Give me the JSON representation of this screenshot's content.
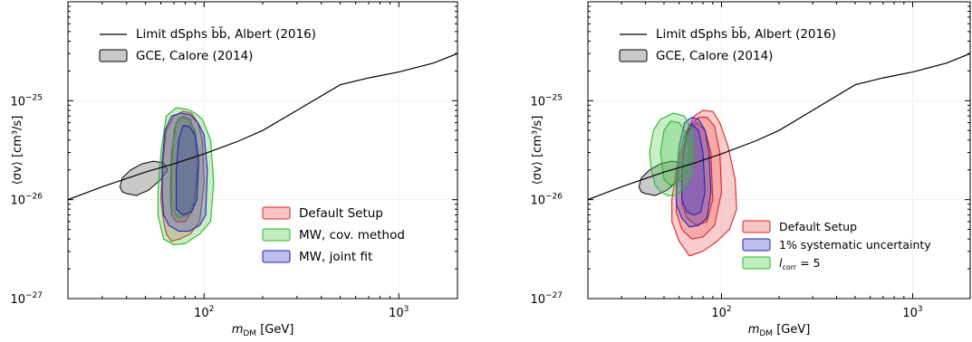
{
  "chart_data": [
    {
      "type": "area",
      "xscale": "log",
      "yscale": "log",
      "xlim": [
        20,
        2000
      ],
      "ylim": [
        1e-27,
        1e-24
      ],
      "xlabel_main": "m",
      "xlabel_sub": "DM",
      "xlabel_unit": " [GeV]",
      "ylabel": "⟨σv⟩ [cm³/s]",
      "x_ticks": [
        {
          "value": 100,
          "base": "10",
          "exp": "2"
        },
        {
          "value": 1000,
          "base": "10",
          "exp": "3"
        }
      ],
      "y_ticks": [
        {
          "value": 1e-27,
          "base": "10",
          "exp": "−27"
        },
        {
          "value": 1e-26,
          "base": "10",
          "exp": "−26"
        },
        {
          "value": 1e-25,
          "base": "10",
          "exp": "−25"
        }
      ],
      "grid": true,
      "legend_top": [
        {
          "label": "Limit dSphs b̄b̄, Albert (2016)",
          "style": "line",
          "color": "#000000"
        },
        {
          "label": "GCE, Calore (2014)",
          "style": "patch",
          "color": "#aaaaaa"
        }
      ],
      "legend_bottom": [
        {
          "label": "Default Setup",
          "color": "#dd2222"
        },
        {
          "label": "MW, cov. method",
          "color": "#22bb22"
        },
        {
          "label": "MW, joint fit",
          "color": "#2222bb"
        }
      ],
      "limit_curve": {
        "x": [
          20,
          30,
          50,
          70,
          100,
          150,
          200,
          300,
          500,
          700,
          1000,
          1500,
          2000
        ],
        "y": [
          1e-26,
          1.35e-26,
          1.9e-26,
          2.3e-26,
          2.9e-26,
          3.9e-26,
          5e-26,
          8e-26,
          1.45e-25,
          1.7e-25,
          1.95e-25,
          2.4e-25,
          3e-25
        ]
      },
      "gce_region": {
        "x": [
          40,
          45,
          52,
          60,
          65,
          62,
          55,
          48,
          42,
          38,
          37,
          38
        ],
        "y": [
          1.15e-26,
          1.1e-26,
          1.25e-26,
          1.6e-26,
          2e-26,
          2.35e-26,
          2.45e-26,
          2.3e-26,
          2e-26,
          1.65e-26,
          1.35e-26,
          1.2e-26
        ]
      },
      "contours": [
        {
          "name": "Default Setup",
          "color": "#dd2222",
          "fill": "rgba(220,60,60,0.28)",
          "levels": [
            {
              "x": [
                62,
                64,
                68,
                75,
                85,
                95,
                100,
                98,
                93,
                86,
                78,
                70,
                64,
                61,
                60
              ],
              "y": [
                6e-27,
                4.5e-27,
                3.8e-27,
                4e-27,
                4.5e-27,
                6e-27,
                1.5e-26,
                4e-26,
                6e-26,
                7.5e-26,
                7.8e-26,
                7e-26,
                5e-26,
                2e-26,
                1e-26
              ]
            },
            {
              "x": [
                68,
                72,
                80,
                88,
                92,
                90,
                85,
                78,
                72,
                68,
                67
              ],
              "y": [
                7e-27,
                6e-27,
                6e-27,
                8e-27,
                2e-26,
                4.5e-26,
                6.5e-26,
                7e-26,
                6e-26,
                3e-26,
                1.2e-26
              ]
            }
          ]
        },
        {
          "name": "MW, cov. method",
          "color": "#22bb22",
          "fill": "rgba(60,190,60,0.28)",
          "levels": [
            {
              "x": [
                58,
                62,
                70,
                80,
                95,
                108,
                112,
                108,
                98,
                90,
                82,
                72,
                64,
                60,
                58
              ],
              "y": [
                7e-27,
                4e-27,
                3.5e-27,
                3.6e-27,
                4.5e-27,
                6e-27,
                1.5e-26,
                4e-26,
                6.5e-26,
                7.5e-26,
                8.2e-26,
                8.5e-26,
                7e-26,
                3e-26,
                1.2e-26
              ]
            },
            {
              "x": [
                68,
                74,
                82,
                90,
                94,
                90,
                82,
                74,
                70,
                68
              ],
              "y": [
                8e-27,
                6.5e-27,
                7e-27,
                1e-26,
                2.5e-26,
                5e-26,
                6.5e-26,
                6.8e-26,
                5e-26,
                2e-26
              ]
            }
          ]
        },
        {
          "name": "MW, joint fit",
          "color": "#2222bb",
          "fill": "rgba(70,70,190,0.30)",
          "levels": [
            {
              "x": [
                62,
                66,
                74,
                84,
                95,
                102,
                104,
                100,
                93,
                85,
                76,
                68,
                63,
                61,
                61
              ],
              "y": [
                7e-27,
                5.5e-27,
                4.8e-27,
                4.8e-27,
                5.5e-27,
                7e-27,
                2e-26,
                4.5e-26,
                6e-26,
                7.2e-26,
                7.5e-26,
                7e-26,
                5e-26,
                2.5e-26,
                1.1e-26
              ]
            },
            {
              "x": [
                72,
                78,
                86,
                92,
                94,
                90,
                84,
                78,
                74,
                72
              ],
              "y": [
                8e-27,
                7e-27,
                7.5e-27,
                1e-26,
                2.5e-26,
                4.5e-26,
                5.5e-26,
                5.6e-26,
                4e-26,
                2e-26
              ]
            }
          ]
        }
      ]
    },
    {
      "type": "area",
      "xscale": "log",
      "yscale": "log",
      "xlim": [
        20,
        2000
      ],
      "ylim": [
        1e-27,
        1e-24
      ],
      "xlabel_main": "m",
      "xlabel_sub": "DM",
      "xlabel_unit": " [GeV]",
      "ylabel": "⟨σv⟩ [cm³/s]",
      "x_ticks": [
        {
          "value": 100,
          "base": "10",
          "exp": "2"
        },
        {
          "value": 1000,
          "base": "10",
          "exp": "3"
        }
      ],
      "y_ticks": [
        {
          "value": 1e-27,
          "base": "10",
          "exp": "−27"
        },
        {
          "value": 1e-26,
          "base": "10",
          "exp": "−26"
        },
        {
          "value": 1e-25,
          "base": "10",
          "exp": "−25"
        }
      ],
      "grid": true,
      "legend_top": [
        {
          "label": "Limit dSphs b̄b̄, Albert (2016)",
          "style": "line",
          "color": "#000000"
        },
        {
          "label": "GCE, Calore (2014)",
          "style": "patch",
          "color": "#aaaaaa"
        }
      ],
      "legend_bottom": [
        {
          "label": "Default Setup",
          "color": "#dd2222"
        },
        {
          "label": "1% systematic uncertainty",
          "color": "#2222bb"
        },
        {
          "label": "l",
          "sub": "corr",
          "suffix": " = 5",
          "color": "#22bb22"
        }
      ],
      "limit_curve": {
        "x": [
          20,
          30,
          50,
          70,
          100,
          150,
          200,
          300,
          500,
          700,
          1000,
          1500,
          2000
        ],
        "y": [
          1e-26,
          1.35e-26,
          1.9e-26,
          2.3e-26,
          2.9e-26,
          3.9e-26,
          5e-26,
          8e-26,
          1.45e-25,
          1.7e-25,
          1.95e-25,
          2.4e-25,
          3e-25
        ]
      },
      "gce_region": {
        "x": [
          40,
          45,
          52,
          60,
          65,
          62,
          55,
          48,
          42,
          38,
          37,
          38
        ],
        "y": [
          1.15e-26,
          1.1e-26,
          1.25e-26,
          1.6e-26,
          2e-26,
          2.35e-26,
          2.45e-26,
          2.3e-26,
          2e-26,
          1.65e-26,
          1.35e-26,
          1.2e-26
        ]
      },
      "contours": [
        {
          "name": "Default Setup",
          "color": "#dd2222",
          "fill": "rgba(235,90,90,0.30)",
          "levels": [
            {
              "x": [
                55,
                60,
                68,
                80,
                95,
                110,
                120,
                118,
                108,
                98,
                90,
                80,
                72,
                64,
                58,
                55
              ],
              "y": [
                6e-27,
                3.8e-27,
                2.7e-27,
                3e-27,
                3.8e-27,
                5e-27,
                8e-27,
                1.6e-26,
                3.5e-26,
                6e-26,
                7.8e-26,
                8e-26,
                7e-26,
                4.5e-26,
                2e-26,
                1e-26
              ]
            },
            {
              "x": [
                58,
                62,
                70,
                80,
                92,
                100,
                98,
                92,
                84,
                76,
                68,
                62,
                58
              ],
              "y": [
                7.5e-27,
                5e-27,
                4e-27,
                4.2e-27,
                5.5e-27,
                1.2e-26,
                3e-26,
                5.5e-26,
                6.8e-26,
                6.8e-26,
                5.5e-26,
                3e-26,
                1.3e-26
              ]
            },
            {
              "x": [
                62,
                66,
                74,
                84,
                90,
                88,
                82,
                74,
                68,
                63,
                62
              ],
              "y": [
                9e-27,
                6.5e-27,
                5.5e-27,
                6e-27,
                1e-26,
                3e-26,
                5e-26,
                6e-26,
                5e-26,
                3e-26,
                1.5e-26
              ]
            }
          ]
        },
        {
          "name": "1% systematic uncertainty",
          "color": "#2222bb",
          "fill": "rgba(70,70,200,0.35)",
          "levels": [
            {
              "x": [
                58,
                62,
                68,
                76,
                84,
                88,
                86,
                82,
                76,
                70,
                64,
                60,
                58
              ],
              "y": [
                9e-27,
                6.5e-27,
                5.3e-27,
                5.5e-27,
                6.5e-27,
                1.2e-26,
                3e-26,
                5e-26,
                6.5e-26,
                6.8e-26,
                6e-26,
                3.5e-26,
                1.5e-26
              ]
            },
            {
              "x": [
                62,
                66,
                72,
                78,
                82,
                80,
                76,
                70,
                65,
                62
              ],
              "y": [
                1e-26,
                7.5e-27,
                7e-27,
                7.5e-27,
                1.2e-26,
                3e-26,
                5e-26,
                5.8e-26,
                4.5e-26,
                2e-26
              ]
            }
          ]
        },
        {
          "name": "l_corr = 5",
          "color": "#22bb22",
          "fill": "rgba(80,200,80,0.30)",
          "levels": [
            {
              "x": [
                45,
                48,
                52,
                58,
                64,
                70,
                72,
                70,
                64,
                56,
                48,
                44,
                42,
                43
              ],
              "y": [
                1.4e-26,
                1.2e-26,
                1.1e-26,
                1.1e-26,
                1.3e-26,
                1.8e-26,
                3e-26,
                5e-26,
                7e-26,
                7.5e-26,
                6.5e-26,
                5e-26,
                3e-26,
                2e-26
              ]
            },
            {
              "x": [
                50,
                54,
                60,
                66,
                68,
                66,
                60,
                54,
                50,
                48
              ],
              "y": [
                1.6e-26,
                1.4e-26,
                1.5e-26,
                1.9e-26,
                3e-26,
                4.5e-26,
                6e-26,
                6.2e-26,
                5e-26,
                3e-26
              ]
            }
          ]
        }
      ]
    }
  ]
}
